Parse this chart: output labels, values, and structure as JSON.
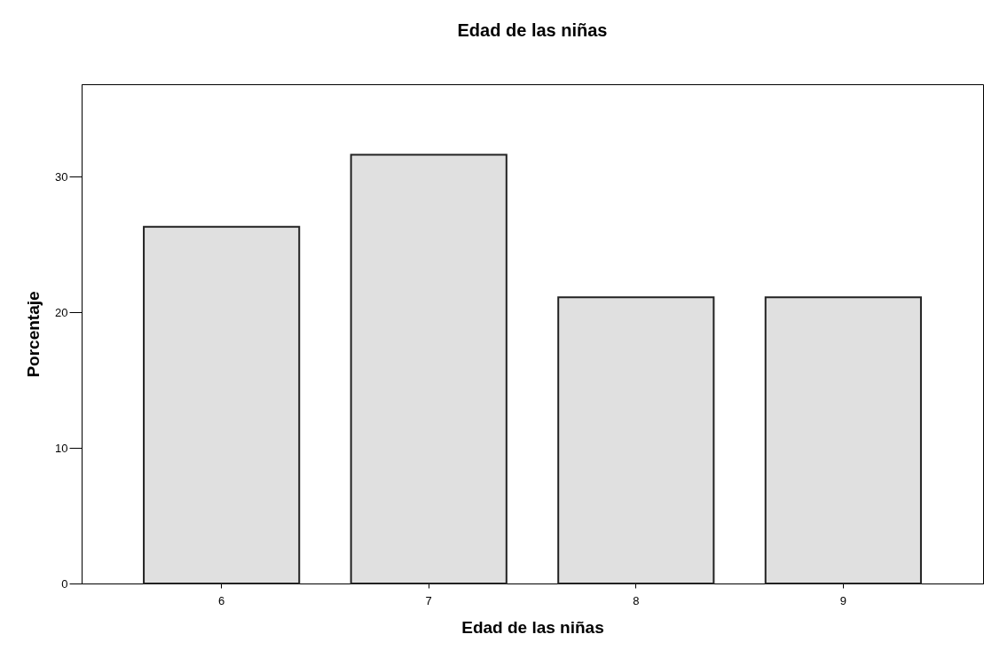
{
  "chart_data": {
    "type": "bar",
    "title": "Edad de las niñas",
    "xlabel": "Edad de las niñas",
    "ylabel": "Porcentaje",
    "categories": [
      "6",
      "7",
      "8",
      "9"
    ],
    "values": [
      26.3,
      31.6,
      21.1,
      21.1
    ],
    "color": "#e0e0e0",
    "ylim": [
      0,
      36.8
    ],
    "yticks": [
      0,
      10,
      20,
      30
    ],
    "grid": false
  }
}
